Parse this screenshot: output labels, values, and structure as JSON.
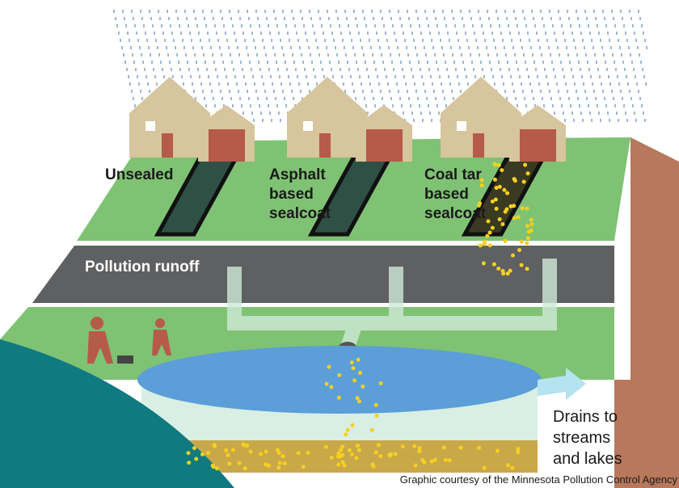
{
  "labels": {
    "unsealed": [
      "Unsealed"
    ],
    "asphalt": [
      "Asphalt",
      "based",
      "sealcoat"
    ],
    "coal_tar": [
      "Coal tar",
      "based",
      "sealcoat"
    ],
    "runoff": "Pollution runoff",
    "drains": [
      "Drains to",
      "streams",
      "and lakes"
    ]
  },
  "credit": "Graphic courtesy of the Minnesota Pollution Control Agency"
}
